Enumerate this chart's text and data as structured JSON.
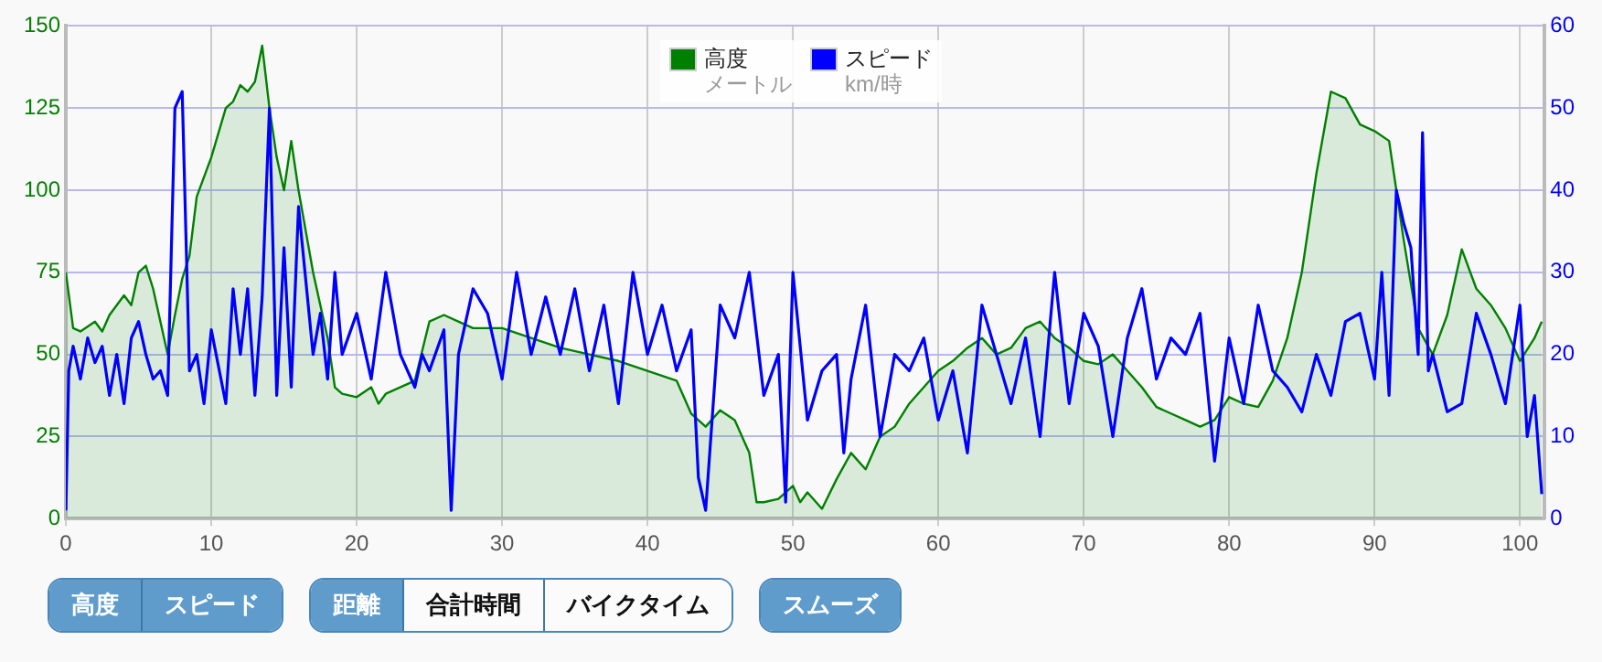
{
  "chart_data": {
    "type": "line",
    "xlim": [
      0,
      101.7
    ],
    "xticks": [
      0,
      10,
      20,
      30,
      40,
      50,
      60,
      70,
      80,
      90,
      100
    ],
    "ylim": [
      0,
      150
    ],
    "yticks": [
      0,
      25,
      50,
      75,
      100,
      125,
      150
    ],
    "y2lim": [
      0,
      60
    ],
    "y2ticks": [
      0,
      10,
      20,
      30,
      40,
      50,
      60
    ],
    "ylabel": "メートル",
    "y2label": "km/時",
    "grid": true,
    "legend": "top",
    "marker": "none",
    "annotations": [
      "高度",
      "スピード",
      "距離",
      "合計時間",
      "バイクタイム",
      "スムーズ"
    ],
    "series": [
      {
        "name": "高度",
        "type": "area",
        "color": "#008000",
        "x": [
          0,
          0.5,
          1,
          2,
          2.5,
          3,
          4,
          4.5,
          5,
          5.5,
          6,
          6.5,
          7,
          7.5,
          8,
          8.5,
          9,
          10,
          11,
          11.5,
          12,
          12.5,
          13,
          13.5,
          14,
          14.5,
          15,
          15.5,
          16,
          17,
          18,
          18.5,
          19,
          20,
          21,
          21.5,
          22,
          24,
          25,
          26,
          28,
          30,
          32,
          34,
          36,
          38,
          40,
          42,
          43,
          44,
          45,
          46,
          47,
          47.5,
          48,
          49,
          50,
          50.5,
          51,
          52,
          53,
          54,
          55,
          56,
          57,
          58,
          59,
          60,
          61,
          62,
          63,
          64,
          65,
          66,
          67,
          68,
          69,
          70,
          71,
          72,
          73,
          74,
          75,
          76,
          77,
          78,
          79,
          80,
          81,
          82,
          83,
          84,
          85,
          86,
          87,
          88,
          89,
          90,
          91,
          92,
          93,
          94,
          95,
          96,
          97,
          98,
          99,
          100,
          101,
          101.5
        ],
        "values": [
          75,
          58,
          57,
          60,
          57,
          62,
          68,
          65,
          75,
          77,
          70,
          60,
          50,
          62,
          73,
          80,
          98,
          110,
          125,
          127,
          132,
          130,
          133,
          144,
          125,
          110,
          100,
          115,
          100,
          75,
          55,
          40,
          38,
          37,
          40,
          35,
          38,
          42,
          60,
          62,
          58,
          58,
          55,
          52,
          50,
          48,
          45,
          42,
          32,
          28,
          33,
          30,
          20,
          5,
          5,
          6,
          10,
          5,
          8,
          3,
          12,
          20,
          15,
          25,
          28,
          35,
          40,
          45,
          48,
          52,
          55,
          50,
          52,
          58,
          60,
          55,
          52,
          48,
          47,
          50,
          45,
          40,
          34,
          32,
          30,
          28,
          30,
          37,
          35,
          34,
          42,
          55,
          75,
          105,
          130,
          128,
          120,
          118,
          115,
          85,
          58,
          50,
          62,
          82,
          70,
          65,
          58,
          48,
          55,
          60
        ]
      },
      {
        "name": "スピード",
        "axis": "y2",
        "color": "#0000ff",
        "x": [
          0,
          0.2,
          0.5,
          1,
          1.5,
          2,
          2.5,
          3,
          3.5,
          4,
          4.5,
          5,
          5.5,
          6,
          6.5,
          7,
          7.5,
          8,
          8.5,
          9,
          9.5,
          10,
          11,
          11.5,
          12,
          12.5,
          13,
          13.5,
          14,
          14.5,
          15,
          15.5,
          16,
          17,
          17.5,
          18,
          18.5,
          19,
          20,
          21,
          22,
          23,
          24,
          24.5,
          25,
          26,
          26.5,
          27,
          28,
          29,
          30,
          31,
          32,
          33,
          34,
          35,
          36,
          37,
          38,
          39,
          40,
          41,
          42,
          43,
          43.5,
          44,
          45,
          46,
          47,
          48,
          49,
          49.5,
          50,
          51,
          52,
          53,
          53.5,
          54,
          55,
          56,
          57,
          58,
          59,
          60,
          61,
          62,
          63,
          64,
          65,
          66,
          67,
          68,
          69,
          70,
          71,
          72,
          73,
          74,
          75,
          76,
          77,
          78,
          79,
          80,
          81,
          82,
          83,
          84,
          85,
          86,
          87,
          88,
          89,
          90,
          90.5,
          91,
          91.5,
          92,
          92.5,
          93,
          93.3,
          93.7,
          94,
          95,
          96,
          97,
          98,
          99,
          99.5,
          100,
          100.5,
          101,
          101.5
        ],
        "values": [
          1,
          18,
          21,
          17,
          22,
          19,
          21,
          15,
          20,
          14,
          22,
          24,
          20,
          17,
          18,
          15,
          50,
          52,
          18,
          20,
          14,
          23,
          14,
          28,
          20,
          28,
          15,
          27,
          50,
          15,
          33,
          16,
          38,
          20,
          25,
          17,
          30,
          20,
          25,
          17,
          30,
          20,
          16,
          20,
          18,
          23,
          1,
          20,
          28,
          25,
          17,
          30,
          20,
          27,
          20,
          28,
          18,
          26,
          14,
          30,
          20,
          26,
          18,
          23,
          5,
          1,
          26,
          22,
          30,
          15,
          20,
          2,
          30,
          12,
          18,
          20,
          8,
          17,
          26,
          10,
          20,
          18,
          22,
          12,
          18,
          8,
          26,
          20,
          14,
          22,
          10,
          30,
          14,
          25,
          21,
          10,
          22,
          28,
          17,
          22,
          20,
          25,
          7,
          22,
          14,
          26,
          18,
          16,
          13,
          20,
          15,
          24,
          25,
          17,
          30,
          15,
          40,
          36,
          33,
          20,
          47,
          18,
          20,
          13,
          14,
          25,
          20,
          14,
          20,
          26,
          10,
          15,
          3
        ]
      }
    ]
  }
}
